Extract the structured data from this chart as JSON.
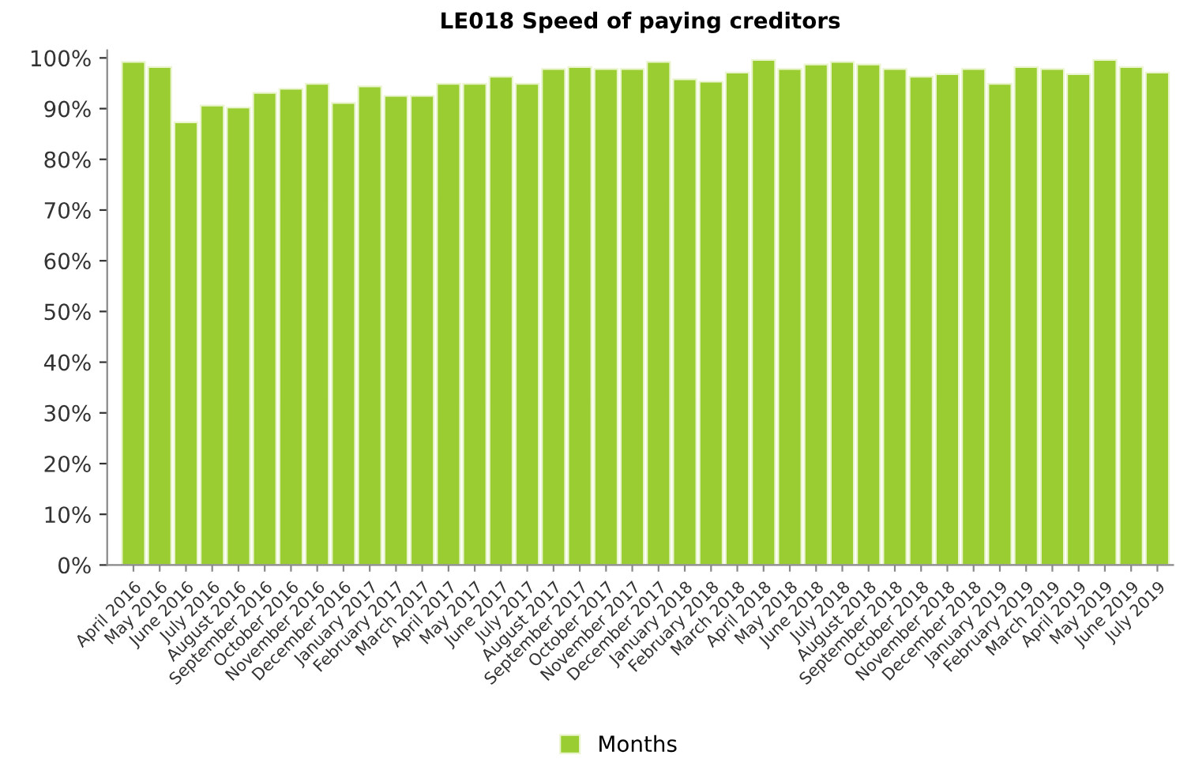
{
  "chart_data": {
    "type": "bar",
    "title": "LE018 Speed of paying creditors",
    "categories": [
      "April 2016",
      "May 2016",
      "June 2016",
      "July 2016",
      "August 2016",
      "September 2016",
      "October 2016",
      "November 2016",
      "December 2016",
      "January 2017",
      "February 2017",
      "March 2017",
      "April 2017",
      "May 2017",
      "June 2017",
      "July 2017",
      "August 2017",
      "September 2017",
      "October 2017",
      "November 2017",
      "December 2017",
      "January 2018",
      "February 2018",
      "March 2018",
      "April 2018",
      "May 2018",
      "June 2018",
      "July 2018",
      "August 2018",
      "September 2018",
      "October 2018",
      "November 2018",
      "December 2018",
      "January 2019",
      "February 2019",
      "March 2019",
      "April 2019",
      "May 2019",
      "June 2019",
      "July 2019"
    ],
    "series": [
      {
        "name": "Months",
        "color": "#9acd32",
        "values": [
          99.2,
          98.2,
          87.3,
          90.6,
          90.2,
          93.1,
          93.9,
          94.9,
          91.1,
          94.4,
          92.5,
          92.5,
          94.9,
          94.9,
          96.3,
          94.9,
          97.8,
          98.2,
          97.8,
          97.8,
          99.2,
          95.8,
          95.3,
          97.1,
          99.6,
          97.8,
          98.7,
          99.2,
          98.7,
          97.8,
          96.3,
          96.8,
          97.8,
          94.9,
          98.2,
          97.8,
          96.8,
          99.6,
          98.2,
          97.1
        ]
      }
    ],
    "ylim": [
      0,
      101.5
    ],
    "yticks": [
      {
        "value": 0,
        "label": "0%"
      },
      {
        "value": 10,
        "label": "10%"
      },
      {
        "value": 20,
        "label": "20%"
      },
      {
        "value": 30,
        "label": "30%"
      },
      {
        "value": 40,
        "label": "40%"
      },
      {
        "value": 50,
        "label": "50%"
      },
      {
        "value": 60,
        "label": "60%"
      },
      {
        "value": 70,
        "label": "70%"
      },
      {
        "value": 80,
        "label": "80%"
      },
      {
        "value": 90,
        "label": "90%"
      },
      {
        "value": 100,
        "label": "100%"
      }
    ],
    "grid": false,
    "legend": "bottom"
  }
}
